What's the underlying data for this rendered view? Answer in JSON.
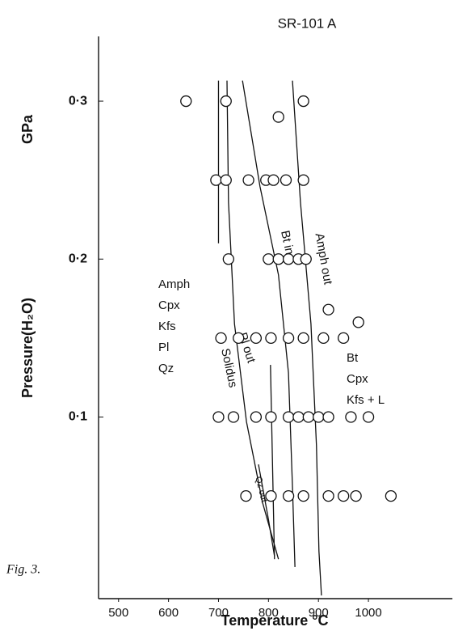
{
  "chart_data": {
    "type": "scatter",
    "title": "SR-101 A",
    "x_label": "Temperature °C",
    "y_label": "Pressure(H₂O)",
    "y_unit": "GPa",
    "caption": "Fig. 3.",
    "xlim": [
      460,
      1168
    ],
    "xticks": [
      500,
      600,
      700,
      800,
      900,
      1000
    ],
    "ylim": [
      -0.015,
      0.341
    ],
    "yticks": [
      {
        "value": 0.1,
        "label": "0·1"
      },
      {
        "value": 0.2,
        "label": "0·2"
      },
      {
        "value": 0.3,
        "label": "0·3"
      }
    ],
    "series": [
      {
        "color": "#111111",
        "x": [
          635,
          715,
          820,
          870,
          695,
          715,
          760,
          795,
          810,
          835,
          870,
          720,
          800,
          820,
          840,
          860,
          875,
          920,
          980,
          705,
          740,
          775,
          805,
          840,
          870,
          910,
          950,
          700,
          730,
          775,
          805,
          840,
          860,
          880,
          900,
          920,
          965,
          1000,
          755,
          805,
          840,
          870,
          920,
          950,
          975,
          1045
        ],
        "values": [
          0.3,
          0.3,
          0.29,
          0.3,
          0.25,
          0.25,
          0.25,
          0.25,
          0.25,
          0.25,
          0.25,
          0.2,
          0.2,
          0.2,
          0.2,
          0.2,
          0.2,
          0.168,
          0.16,
          0.15,
          0.15,
          0.15,
          0.15,
          0.15,
          0.15,
          0.15,
          0.15,
          0.1,
          0.1,
          0.1,
          0.1,
          0.1,
          0.1,
          0.1,
          0.1,
          0.1,
          0.1,
          0.1,
          0.05,
          0.05,
          0.05,
          0.05,
          0.05,
          0.05,
          0.05,
          0.05
        ]
      }
    ],
    "curves": [
      {
        "x": [
          700,
          700
        ],
        "values": [
          0.313,
          0.21
        ]
      },
      {
        "name": "Solidus",
        "x": [
          717,
          720,
          732,
          756,
          788,
          820
        ],
        "values": [
          0.313,
          0.236,
          0.159,
          0.097,
          0.046,
          0.01
        ]
      },
      {
        "name": "Pl out",
        "x": [
          748,
          783,
          820,
          840,
          848,
          853
        ],
        "values": [
          0.313,
          0.246,
          0.19,
          0.128,
          0.056,
          0.005
        ]
      },
      {
        "name": "Bt in",
        "x": [
          804,
          809,
          812
        ],
        "values": [
          0.133,
          0.056,
          0.01
        ]
      },
      {
        "name": "Amph out",
        "x": [
          848,
          864,
          885,
          896,
          901,
          906
        ],
        "values": [
          0.313,
          0.236,
          0.159,
          0.082,
          0.015,
          -0.013
        ]
      },
      {
        "name": "Qz out",
        "x": [
          780,
          800,
          812
        ],
        "values": [
          0.07,
          0.035,
          0.012
        ]
      }
    ],
    "fields": [
      [
        "Amph",
        "Cpx",
        "Kfs",
        "Pl",
        "Qz"
      ],
      [
        "Bt",
        "Cpx",
        "Kfs + L"
      ]
    ]
  }
}
